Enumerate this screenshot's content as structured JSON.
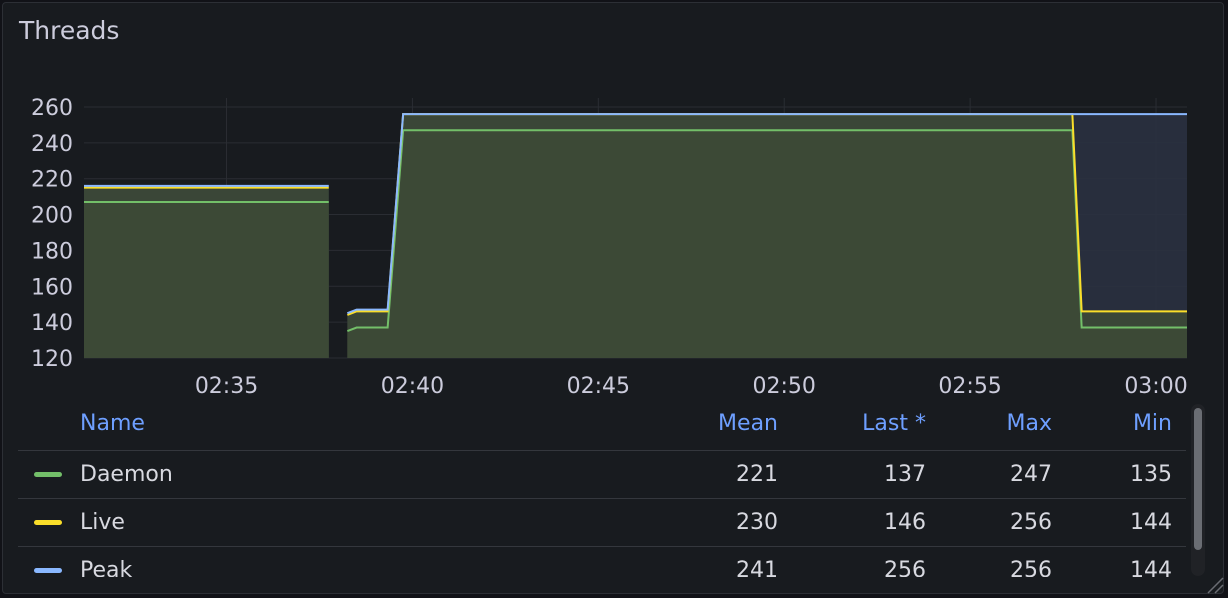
{
  "panel": {
    "title": "Threads"
  },
  "colors": {
    "daemon": "#73bf69",
    "live": "#fade2a",
    "peak": "#8ab8ff",
    "fill": "#3d4a36",
    "grid": "#2a2d33",
    "axis_text": "#ccccdc"
  },
  "chart_data": {
    "type": "line",
    "title": "Threads",
    "x_ticks": [
      "02:35",
      "02:40",
      "02:45",
      "02:50",
      "02:55",
      "03:00"
    ],
    "x_range": [
      "02:31:10",
      "03:00:50"
    ],
    "y_ticks": [
      "120",
      "140",
      "160",
      "180",
      "200",
      "220",
      "240",
      "260"
    ],
    "ylim": [
      120,
      265
    ],
    "grid": true,
    "legend_placement": "bottom table",
    "series": [
      {
        "name": "Daemon",
        "color": "#73bf69",
        "segments": [
          [
            [
              "02:31:10",
              207
            ],
            [
              "02:37:45",
              207
            ]
          ],
          [
            [
              "02:38:15",
              135
            ],
            [
              "02:38:30",
              137
            ],
            [
              "02:39:20",
              137
            ],
            [
              "02:39:45",
              247
            ],
            [
              "02:57:45",
              247
            ],
            [
              "02:58:00",
              137
            ],
            [
              "03:00:50",
              137
            ]
          ]
        ]
      },
      {
        "name": "Live",
        "color": "#fade2a",
        "segments": [
          [
            [
              "02:31:10",
              215
            ],
            [
              "02:37:45",
              215
            ]
          ],
          [
            [
              "02:38:15",
              144
            ],
            [
              "02:38:30",
              146
            ],
            [
              "02:39:20",
              146
            ],
            [
              "02:39:45",
              256
            ],
            [
              "02:57:45",
              256
            ],
            [
              "02:58:00",
              146
            ],
            [
              "03:00:50",
              146
            ]
          ]
        ]
      },
      {
        "name": "Peak",
        "color": "#8ab8ff",
        "segments": [
          [
            [
              "02:31:10",
              216
            ],
            [
              "02:37:45",
              216
            ]
          ],
          [
            [
              "02:38:15",
              145
            ],
            [
              "02:38:30",
              147
            ],
            [
              "02:39:20",
              147
            ],
            [
              "02:39:45",
              256
            ],
            [
              "03:00:50",
              256
            ]
          ]
        ]
      }
    ]
  },
  "legend": {
    "headers": {
      "name": "Name",
      "mean": "Mean",
      "last": "Last *",
      "max": "Max",
      "min": "Min"
    },
    "rows": [
      {
        "name": "Daemon",
        "color": "#73bf69",
        "mean": "221",
        "last": "137",
        "max": "247",
        "min": "135"
      },
      {
        "name": "Live",
        "color": "#fade2a",
        "mean": "230",
        "last": "146",
        "max": "256",
        "min": "144"
      },
      {
        "name": "Peak",
        "color": "#8ab8ff",
        "mean": "241",
        "last": "256",
        "max": "256",
        "min": "144"
      }
    ]
  }
}
